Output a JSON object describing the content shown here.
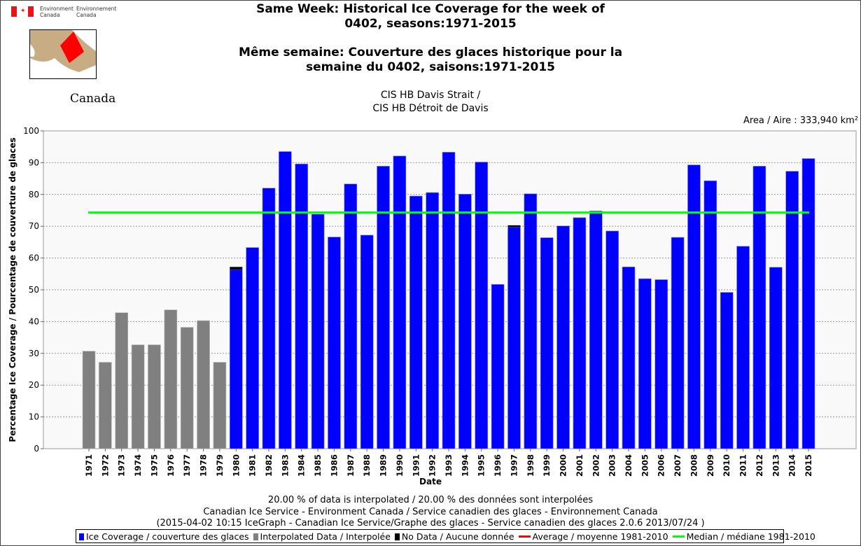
{
  "header": {
    "title_en_line1": "Same Week: Historical Ice Coverage for the week of",
    "title_en_line2": "0402, seasons:1971-2015",
    "title_fr_line1": "Même semaine: Couverture des glaces historique pour la",
    "title_fr_line2": "semaine du 0402, saisons:1971-2015",
    "region_en": "CIS HB Davis Strait /",
    "region_fr": "CIS HB Détroit de Davis",
    "area": "Area / Aire : 333,940 km²"
  },
  "logos": {
    "env_en_1": "Environment",
    "env_en_2": "Canada",
    "env_fr_1": "Environnement",
    "env_fr_2": "Canada",
    "wordmark": "Canada"
  },
  "footer": {
    "line1": "20.00 % of data is interpolated / 20.00 % des données sont interpolées",
    "line2": "Canadian Ice Service - Environment Canada / Service canadien des glaces - Environnement Canada",
    "line3": "(2015-04-02 10:15 IceGraph - Canadian Ice Service/Graphe des glaces - Service canadien des glaces 2.0.6 2013/07/24 )"
  },
  "colors": {
    "ice": "#0000ff",
    "interpolated": "#808080",
    "nodata": "#000000",
    "average": "#ff0000",
    "median": "#00ff00"
  },
  "chart_data": {
    "type": "bar",
    "xlabel": "Date",
    "ylabel": "Percentage Ice Coverage / Pourcentage de couverture de glaces",
    "ylim": [
      0,
      100
    ],
    "yticks": [
      0,
      10,
      20,
      30,
      40,
      50,
      60,
      70,
      80,
      90,
      100
    ],
    "grid": true,
    "categories": [
      "1971",
      "1972",
      "1973",
      "1974",
      "1975",
      "1976",
      "1977",
      "1978",
      "1979",
      "1980",
      "1981",
      "1982",
      "1983",
      "1984",
      "1985",
      "1986",
      "1987",
      "1988",
      "1989",
      "1990",
      "1991",
      "1992",
      "1993",
      "1994",
      "1995",
      "1996",
      "1997",
      "1998",
      "1999",
      "2000",
      "2001",
      "2002",
      "2003",
      "2004",
      "2005",
      "2006",
      "2007",
      "2008",
      "2009",
      "2010",
      "2011",
      "2012",
      "2013",
      "2014",
      "2015"
    ],
    "values": [
      30.7,
      27.2,
      42.8,
      32.7,
      32.7,
      43.7,
      38.2,
      40.3,
      27.2,
      56.4,
      63.3,
      82.0,
      93.5,
      89.6,
      73.8,
      66.6,
      83.3,
      67.2,
      88.9,
      92.1,
      79.5,
      80.6,
      93.3,
      80.1,
      90.2,
      51.7,
      69.8,
      80.2,
      66.4,
      70.1,
      72.7,
      74.8,
      68.5,
      57.2,
      53.5,
      53.2,
      66.5,
      89.3,
      84.3,
      49.2,
      63.7,
      88.9,
      57.1,
      87.3,
      91.3
    ],
    "interpolated": [
      true,
      true,
      true,
      true,
      true,
      true,
      true,
      true,
      true,
      false,
      false,
      false,
      false,
      false,
      false,
      false,
      false,
      false,
      false,
      false,
      false,
      false,
      false,
      false,
      false,
      false,
      false,
      false,
      false,
      false,
      false,
      false,
      false,
      false,
      false,
      false,
      false,
      false,
      false,
      false,
      false,
      false,
      false,
      false,
      false
    ],
    "no_data": [
      0,
      0,
      0,
      0,
      0,
      0,
      0,
      0,
      0,
      0.8,
      0,
      0,
      0,
      0,
      0,
      0,
      0,
      0,
      0,
      0,
      0,
      0,
      0,
      0,
      0,
      0,
      0.5,
      0,
      0,
      0,
      0,
      0,
      0,
      0,
      0,
      0,
      0,
      0,
      0,
      0,
      0,
      0,
      0,
      0,
      0
    ],
    "median": {
      "value": 74.3,
      "label": "Median / médiane 1981-2010"
    },
    "legend": [
      {
        "key": "ice",
        "label": "Ice Coverage / couverture des glaces"
      },
      {
        "key": "interpolated",
        "label": "Interpolated Data / Interpolée"
      },
      {
        "key": "nodata",
        "label": "No Data / Aucune donnée"
      },
      {
        "key": "average",
        "label": "Average / moyenne 1981-2010"
      },
      {
        "key": "median",
        "label": "Median / médiane 1981-2010"
      }
    ],
    "legend_position": "bottom"
  }
}
